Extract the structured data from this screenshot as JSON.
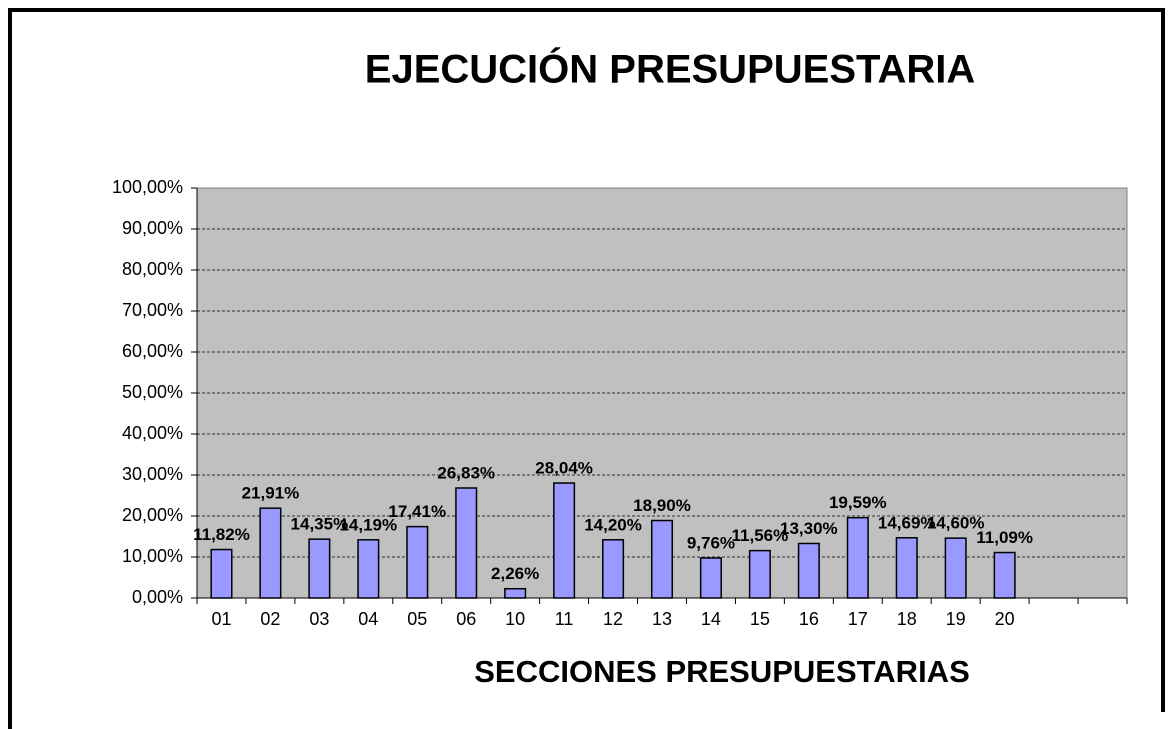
{
  "chart_data": {
    "type": "bar",
    "title": "EJECUCIÓN PRESUPUESTARIA",
    "x_label": "SECCIONES PRESUPUESTARIAS",
    "categories": [
      "01",
      "02",
      "03",
      "04",
      "05",
      "06",
      "10",
      "11",
      "12",
      "13",
      "14",
      "15",
      "16",
      "17",
      "18",
      "19",
      "20",
      null,
      null
    ],
    "values": [
      11.82,
      21.91,
      14.35,
      14.19,
      17.41,
      26.83,
      2.26,
      28.04,
      14.2,
      18.9,
      9.76,
      11.56,
      13.3,
      19.59,
      14.69,
      14.6,
      11.09,
      null,
      null
    ],
    "value_labels": [
      "11,82%",
      "21,91%",
      "14,35%",
      "14,19%",
      "17,41%",
      "26,83%",
      "2,26%",
      "28,04%",
      "14,20%",
      "18,90%",
      "9,76%",
      "11,56%",
      "13,30%",
      "19,59%",
      "14,69%",
      "14,60%",
      "11,09%",
      null,
      null
    ],
    "color": "#9999ff",
    "ylim": [
      0,
      100
    ],
    "yticks": [
      {
        "value": 0,
        "label": "0,00%"
      },
      {
        "value": 10,
        "label": "10,00%"
      },
      {
        "value": 20,
        "label": "20,00%"
      },
      {
        "value": 30,
        "label": "30,00%"
      },
      {
        "value": 40,
        "label": "40,00%"
      },
      {
        "value": 50,
        "label": "50,00%"
      },
      {
        "value": 60,
        "label": "60,00%"
      },
      {
        "value": 70,
        "label": "70,00%"
      },
      {
        "value": 80,
        "label": "80,00%"
      },
      {
        "value": 90,
        "label": "90,00%"
      },
      {
        "value": 100,
        "label": "100,00%"
      }
    ],
    "grid": true
  }
}
